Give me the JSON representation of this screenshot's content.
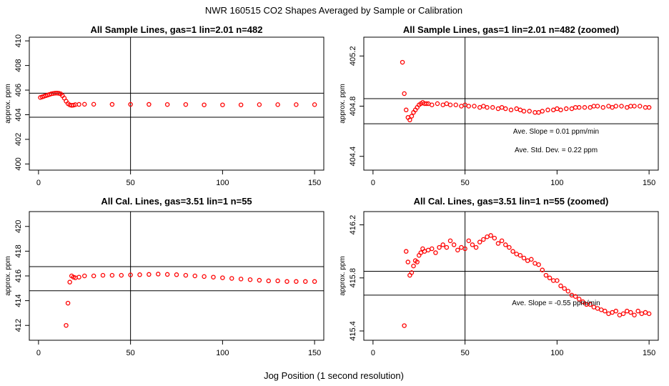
{
  "title": "NWR  160515  CO2 Shapes Averaged by Sample or Calibration",
  "xlabel": "Jog Position (1 second resolution)",
  "colors": {
    "points": "#ff0000",
    "axes": "#000000",
    "background": "#ffffff"
  },
  "chart_data": [
    {
      "type": "scatter",
      "title": "All Sample Lines, gas=1 lin=2.01 n=482",
      "ylabel": "approx. ppm",
      "xlim": [
        -5,
        155
      ],
      "ylim": [
        399.5,
        410.3
      ],
      "xticks": [
        "0",
        "50",
        "100",
        "150"
      ],
      "xtick_values": [
        0,
        50,
        100,
        150
      ],
      "yticks": [
        "400",
        "402",
        "404",
        "406",
        "408",
        "410"
      ],
      "ytick_values": [
        400,
        402,
        404,
        406,
        408,
        410
      ],
      "vline": 50,
      "hlines": [
        405.75,
        403.8
      ],
      "annotations": [],
      "series": [
        {
          "name": "sample",
          "points": [
            [
              1,
              405.4
            ],
            [
              2,
              405.45
            ],
            [
              3,
              405.5
            ],
            [
              4,
              405.55
            ],
            [
              5,
              405.6
            ],
            [
              6,
              405.65
            ],
            [
              7,
              405.7
            ],
            [
              8,
              405.73
            ],
            [
              9,
              405.75
            ],
            [
              10,
              405.76
            ],
            [
              11,
              405.74
            ],
            [
              12,
              405.7
            ],
            [
              13,
              405.55
            ],
            [
              14,
              405.35
            ],
            [
              15,
              405.1
            ],
            [
              16,
              404.9
            ],
            [
              17,
              404.8
            ],
            [
              18,
              404.76
            ],
            [
              19,
              404.78
            ],
            [
              20,
              404.82
            ],
            [
              22,
              404.84
            ],
            [
              25,
              404.85
            ],
            [
              30,
              404.85
            ],
            [
              40,
              404.84
            ],
            [
              50,
              404.84
            ],
            [
              60,
              404.84
            ],
            [
              70,
              404.83
            ],
            [
              80,
              404.83
            ],
            [
              90,
              404.8
            ],
            [
              100,
              404.8
            ],
            [
              110,
              404.8
            ],
            [
              120,
              404.82
            ],
            [
              130,
              404.82
            ],
            [
              140,
              404.82
            ],
            [
              150,
              404.82
            ]
          ]
        }
      ]
    },
    {
      "type": "scatter",
      "title": "All Sample Lines, gas=1 lin=2.01 n=482 (zoomed)",
      "ylabel": "approx. ppm",
      "xlim": [
        -5,
        155
      ],
      "ylim": [
        404.29,
        405.35
      ],
      "xticks": [
        "0",
        "50",
        "100",
        "150"
      ],
      "xtick_values": [
        0,
        50,
        100,
        150
      ],
      "yticks": [
        "404.4",
        "404.8",
        "405.2"
      ],
      "ytick_values": [
        404.4,
        404.8,
        405.2
      ],
      "vline": 50,
      "hlines": [
        404.86,
        404.66
      ],
      "annotations": [
        "Ave. Slope =  0.01  ppm/min",
        "Ave. Std. Dev. =  0.22  ppm"
      ],
      "series": [
        {
          "name": "sample-zoomed",
          "points": [
            [
              16,
              405.15
            ],
            [
              17,
              404.9
            ],
            [
              18,
              404.77
            ],
            [
              19,
              404.71
            ],
            [
              20,
              404.69
            ],
            [
              21,
              404.72
            ],
            [
              22,
              404.75
            ],
            [
              23,
              404.77
            ],
            [
              24,
              404.79
            ],
            [
              25,
              404.81
            ],
            [
              26,
              404.82
            ],
            [
              27,
              404.83
            ],
            [
              28,
              404.82
            ],
            [
              29,
              404.82
            ],
            [
              30,
              404.82
            ],
            [
              32,
              404.81
            ],
            [
              35,
              404.82
            ],
            [
              38,
              404.81
            ],
            [
              40,
              404.82
            ],
            [
              42,
              404.81
            ],
            [
              45,
              404.81
            ],
            [
              48,
              404.8
            ],
            [
              50,
              404.81
            ],
            [
              52,
              404.8
            ],
            [
              55,
              404.8
            ],
            [
              58,
              404.79
            ],
            [
              60,
              404.8
            ],
            [
              62,
              404.79
            ],
            [
              65,
              404.79
            ],
            [
              68,
              404.78
            ],
            [
              70,
              404.79
            ],
            [
              72,
              404.78
            ],
            [
              75,
              404.77
            ],
            [
              78,
              404.78
            ],
            [
              80,
              404.77
            ],
            [
              82,
              404.76
            ],
            [
              85,
              404.76
            ],
            [
              88,
              404.75
            ],
            [
              90,
              404.75
            ],
            [
              92,
              404.76
            ],
            [
              95,
              404.77
            ],
            [
              98,
              404.77
            ],
            [
              100,
              404.78
            ],
            [
              102,
              404.77
            ],
            [
              105,
              404.78
            ],
            [
              108,
              404.78
            ],
            [
              110,
              404.79
            ],
            [
              112,
              404.79
            ],
            [
              115,
              404.79
            ],
            [
              118,
              404.79
            ],
            [
              120,
              404.8
            ],
            [
              122,
              404.8
            ],
            [
              125,
              404.79
            ],
            [
              128,
              404.8
            ],
            [
              130,
              404.79
            ],
            [
              132,
              404.8
            ],
            [
              135,
              404.8
            ],
            [
              138,
              404.79
            ],
            [
              140,
              404.8
            ],
            [
              142,
              404.8
            ],
            [
              145,
              404.8
            ],
            [
              148,
              404.79
            ],
            [
              150,
              404.79
            ]
          ]
        }
      ]
    },
    {
      "type": "scatter",
      "title": "All Cal. Lines, gas=3.51 lin=1 n=55",
      "ylabel": "approx. ppm",
      "xlim": [
        -5,
        155
      ],
      "ylim": [
        410.8,
        421.2
      ],
      "xticks": [
        "0",
        "50",
        "100",
        "150"
      ],
      "xtick_values": [
        0,
        50,
        100,
        150
      ],
      "yticks": [
        "412",
        "414",
        "416",
        "418",
        "420"
      ],
      "ytick_values": [
        412,
        414,
        416,
        418,
        420
      ],
      "vline": 50,
      "hlines": [
        416.75,
        414.8
      ],
      "annotations": [],
      "series": [
        {
          "name": "cal",
          "points": [
            [
              15,
              412.0
            ],
            [
              16,
              413.8
            ],
            [
              17,
              415.5
            ],
            [
              18,
              416.0
            ],
            [
              19,
              415.9
            ],
            [
              20,
              415.85
            ],
            [
              22,
              415.9
            ],
            [
              25,
              416.0
            ],
            [
              30,
              416.0
            ],
            [
              35,
              416.05
            ],
            [
              40,
              416.05
            ],
            [
              45,
              416.05
            ],
            [
              50,
              416.08
            ],
            [
              55,
              416.1
            ],
            [
              60,
              416.12
            ],
            [
              65,
              416.15
            ],
            [
              70,
              416.12
            ],
            [
              75,
              416.1
            ],
            [
              80,
              416.05
            ],
            [
              85,
              416.0
            ],
            [
              90,
              415.95
            ],
            [
              95,
              415.9
            ],
            [
              100,
              415.85
            ],
            [
              105,
              415.8
            ],
            [
              110,
              415.75
            ],
            [
              115,
              415.7
            ],
            [
              120,
              415.65
            ],
            [
              125,
              415.6
            ],
            [
              130,
              415.6
            ],
            [
              135,
              415.55
            ],
            [
              140,
              415.55
            ],
            [
              145,
              415.55
            ],
            [
              150,
              415.55
            ]
          ]
        }
      ]
    },
    {
      "type": "scatter",
      "title": "All Cal. Lines, gas=3.51 lin=1 n=55 (zoomed)",
      "ylabel": "approx. ppm",
      "xlim": [
        -5,
        155
      ],
      "ylim": [
        415.33,
        416.3
      ],
      "xticks": [
        "0",
        "50",
        "100",
        "150"
      ],
      "xtick_values": [
        0,
        50,
        100,
        150
      ],
      "yticks": [
        "415.4",
        "415.8",
        "416.2"
      ],
      "ytick_values": [
        415.4,
        415.8,
        416.2
      ],
      "vline": 50,
      "hlines": [
        415.85,
        415.67
      ],
      "annotations": [
        "Ave. Slope =  -0.55  ppm/min"
      ],
      "series": [
        {
          "name": "cal-zoomed",
          "points": [
            [
              17,
              415.44
            ],
            [
              18,
              416.0
            ],
            [
              19,
              415.92
            ],
            [
              20,
              415.82
            ],
            [
              21,
              415.84
            ],
            [
              22,
              415.89
            ],
            [
              23,
              415.93
            ],
            [
              24,
              415.92
            ],
            [
              25,
              415.97
            ],
            [
              26,
              415.99
            ],
            [
              27,
              416.02
            ],
            [
              28,
              416.0
            ],
            [
              30,
              416.01
            ],
            [
              32,
              416.02
            ],
            [
              34,
              415.99
            ],
            [
              36,
              416.03
            ],
            [
              38,
              416.05
            ],
            [
              40,
              416.03
            ],
            [
              42,
              416.08
            ],
            [
              44,
              416.05
            ],
            [
              46,
              416.01
            ],
            [
              48,
              416.03
            ],
            [
              50,
              416.02
            ],
            [
              52,
              416.08
            ],
            [
              54,
              416.05
            ],
            [
              56,
              416.03
            ],
            [
              58,
              416.07
            ],
            [
              60,
              416.09
            ],
            [
              62,
              416.11
            ],
            [
              64,
              416.12
            ],
            [
              66,
              416.1
            ],
            [
              68,
              416.06
            ],
            [
              70,
              416.08
            ],
            [
              72,
              416.05
            ],
            [
              74,
              416.03
            ],
            [
              76,
              416.0
            ],
            [
              78,
              415.98
            ],
            [
              80,
              415.97
            ],
            [
              82,
              415.95
            ],
            [
              84,
              415.93
            ],
            [
              86,
              415.94
            ],
            [
              88,
              415.91
            ],
            [
              90,
              415.9
            ],
            [
              92,
              415.86
            ],
            [
              94,
              415.82
            ],
            [
              96,
              415.8
            ],
            [
              98,
              415.78
            ],
            [
              100,
              415.78
            ],
            [
              102,
              415.74
            ],
            [
              104,
              415.72
            ],
            [
              106,
              415.7
            ],
            [
              108,
              415.67
            ],
            [
              110,
              415.66
            ],
            [
              112,
              415.64
            ],
            [
              114,
              415.62
            ],
            [
              116,
              415.6
            ],
            [
              118,
              415.6
            ],
            [
              120,
              415.58
            ],
            [
              122,
              415.57
            ],
            [
              124,
              415.56
            ],
            [
              126,
              415.55
            ],
            [
              128,
              415.53
            ],
            [
              130,
              415.54
            ],
            [
              132,
              415.55
            ],
            [
              134,
              415.52
            ],
            [
              136,
              415.53
            ],
            [
              138,
              415.55
            ],
            [
              140,
              415.54
            ],
            [
              142,
              415.52
            ],
            [
              144,
              415.55
            ],
            [
              146,
              415.53
            ],
            [
              148,
              415.54
            ],
            [
              150,
              415.53
            ]
          ]
        }
      ]
    }
  ]
}
